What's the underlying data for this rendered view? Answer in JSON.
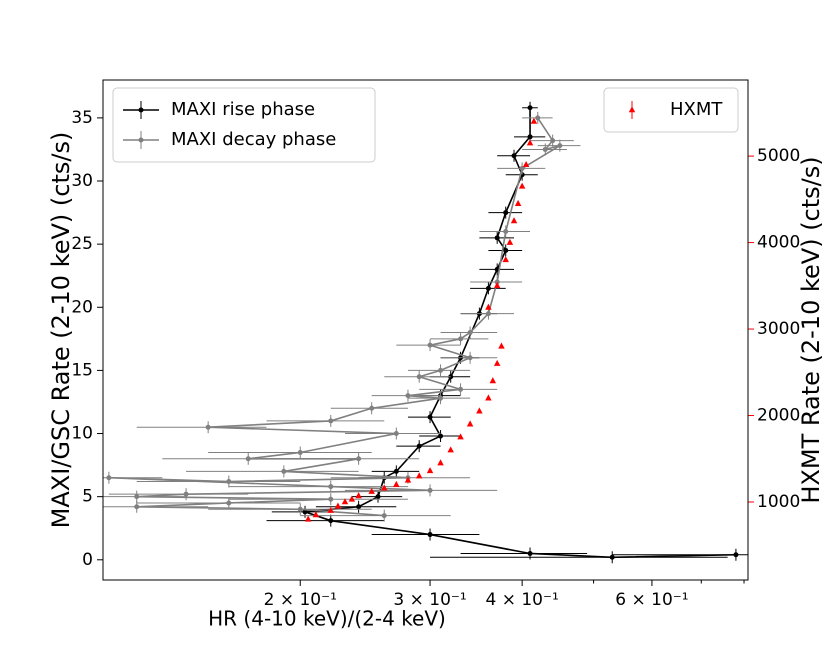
{
  "chart_data": {
    "type": "line",
    "xlabel": "HR (4-10 keV)/(2-4 keV)",
    "ylabel": "MAXI/GSC Rate (2-10 keV) (cts/s)",
    "y2label": "HXMT Rate (2-10 keV) (cts/s)",
    "xscale": "log",
    "xlim": [
      0.108,
      0.81
    ],
    "xticks": [
      {
        "value": 0.2,
        "label": "2 × 10⁻¹"
      },
      {
        "value": 0.3,
        "label": "3 × 10⁻¹"
      },
      {
        "value": 0.4,
        "label": "4 × 10⁻¹"
      },
      {
        "value": 0.6,
        "label": "6 × 10⁻¹"
      }
    ],
    "xminorticks": [
      0.5,
      0.7,
      0.8
    ],
    "ylim": [
      -1.6,
      38
    ],
    "yticks": [
      0,
      5,
      10,
      15,
      20,
      25,
      30,
      35
    ],
    "y2lim": [
      98,
      5880
    ],
    "y2ticks": [
      1000,
      2000,
      3000,
      4000,
      5000
    ],
    "y2color": "#ff0000",
    "legend_loc": "upper left",
    "legend2_loc": "upper right",
    "series": [
      {
        "name": "MAXI rise phase",
        "color": "#000000",
        "marker": "circle",
        "x": [
          0.78,
          0.53,
          0.41,
          0.3,
          0.22,
          0.203,
          0.24,
          0.255,
          0.26,
          0.27,
          0.29,
          0.31,
          0.3,
          0.31,
          0.32,
          0.33,
          0.35,
          0.36,
          0.37,
          0.38,
          0.37,
          0.38,
          0.4,
          0.39,
          0.41,
          0.41
        ],
        "values": [
          0.4,
          0.2,
          0.5,
          2.0,
          3.1,
          3.8,
          4.2,
          5.0,
          6.5,
          7.0,
          9.0,
          9.8,
          11.3,
          13.0,
          14.5,
          16.0,
          19.5,
          21.5,
          23.0,
          24.5,
          25.5,
          27.5,
          30.5,
          32.0,
          33.5,
          35.8
        ],
        "xerr": [
          0.25,
          0.23,
          0.08,
          0.05,
          0.04,
          0.02,
          0.03,
          0.02,
          0.02,
          0.02,
          0.02,
          0.02,
          0.02,
          0.02,
          0.02,
          0.02,
          0.02,
          0.02,
          0.02,
          0.02,
          0.02,
          0.02,
          0.02,
          0.02,
          0.02,
          0.01
        ]
      },
      {
        "name": "MAXI decay phase",
        "color": "#808080",
        "marker": "circle",
        "x": [
          0.42,
          0.44,
          0.43,
          0.45,
          0.4,
          0.38,
          0.37,
          0.36,
          0.34,
          0.33,
          0.3,
          0.34,
          0.31,
          0.29,
          0.33,
          0.28,
          0.31,
          0.25,
          0.22,
          0.15,
          0.27,
          0.2,
          0.17,
          0.24,
          0.19,
          0.28,
          0.16,
          0.11,
          0.22,
          0.3,
          0.14,
          0.12,
          0.22,
          0.16,
          0.12,
          0.2,
          0.26
        ],
        "values": [
          35.0,
          33.2,
          32.5,
          32.8,
          31.0,
          26.0,
          22.0,
          19.5,
          18.0,
          17.5,
          17.0,
          16.0,
          15.0,
          14.5,
          13.5,
          13.0,
          12.8,
          12.0,
          11.0,
          10.5,
          10.0,
          8.5,
          8.0,
          8.0,
          7.0,
          6.5,
          6.2,
          6.5,
          5.8,
          5.5,
          5.2,
          5.0,
          4.8,
          4.5,
          4.2,
          4.0,
          3.5
        ],
        "xerr": [
          0.02,
          0.03,
          0.03,
          0.03,
          0.03,
          0.03,
          0.03,
          0.03,
          0.03,
          0.03,
          0.03,
          0.03,
          0.03,
          0.03,
          0.04,
          0.03,
          0.03,
          0.03,
          0.04,
          0.03,
          0.04,
          0.05,
          0.04,
          0.05,
          0.05,
          0.06,
          0.04,
          0.02,
          0.06,
          0.07,
          0.03,
          0.02,
          0.06,
          0.04,
          0.03,
          0.05,
          0.06
        ]
      },
      {
        "name": "HXMT",
        "color": "#ff0000",
        "marker": "triangle",
        "axis": "y2",
        "x": [
          0.205,
          0.21,
          0.22,
          0.225,
          0.23,
          0.235,
          0.24,
          0.25,
          0.26,
          0.27,
          0.28,
          0.29,
          0.3,
          0.31,
          0.32,
          0.33,
          0.34,
          0.35,
          0.36,
          0.365,
          0.37,
          0.375,
          0.36,
          0.37,
          0.38,
          0.385,
          0.39,
          0.395,
          0.4,
          0.405,
          0.41,
          0.415
        ],
        "values": [
          800,
          850,
          900,
          950,
          1000,
          1030,
          1070,
          1120,
          1160,
          1200,
          1250,
          1300,
          1360,
          1450,
          1600,
          1750,
          1900,
          2050,
          2200,
          2400,
          2600,
          2800,
          3250,
          3500,
          3800,
          4000,
          4250,
          4450,
          4650,
          4900,
          5150,
          5400
        ]
      }
    ]
  }
}
